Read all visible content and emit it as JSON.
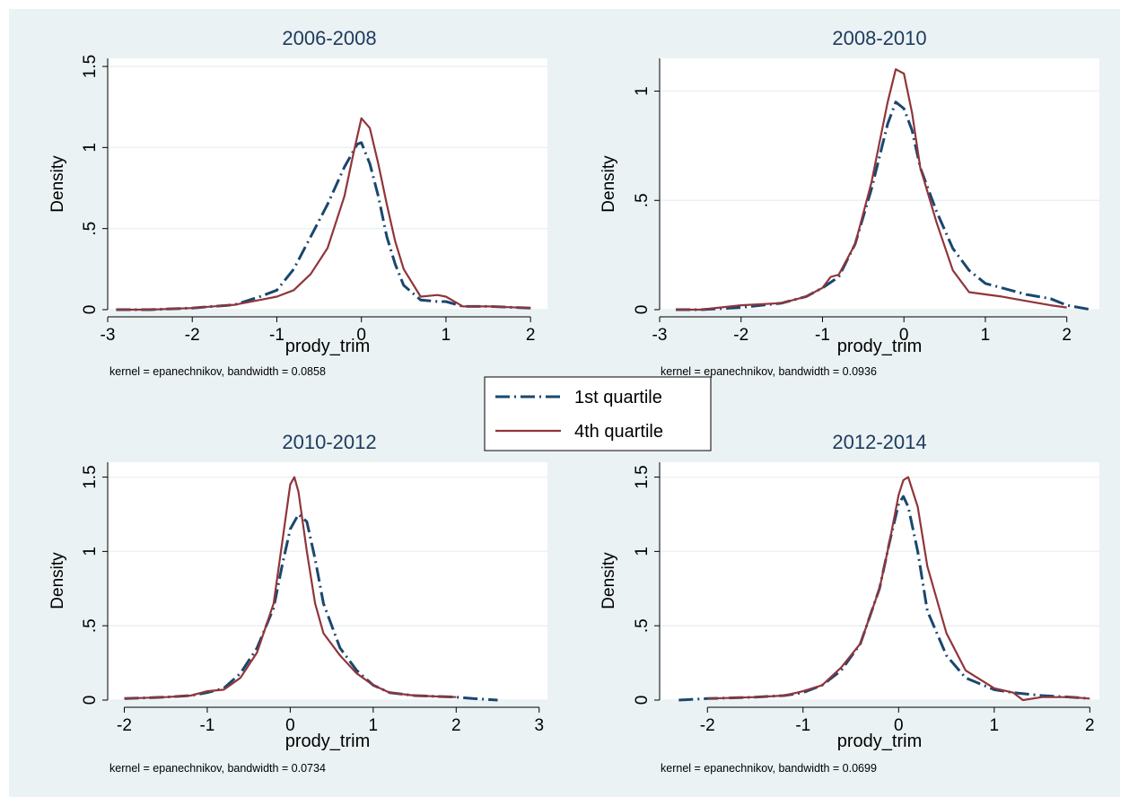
{
  "colors": {
    "background": "#eaf2f3",
    "plot_background": "#ffffff",
    "gridline": "#eaf2f3",
    "text": "#000000",
    "title_text": "#1e3a5f",
    "first_quartile": "#1a476f",
    "fourth_quartile": "#90353b"
  },
  "legend": {
    "placement": "center",
    "items": [
      {
        "label": "1st quartile",
        "style": "dash-dot",
        "color": "#1a476f"
      },
      {
        "label": "4th quartile",
        "style": "solid",
        "color": "#90353b"
      }
    ]
  },
  "chart_data": [
    {
      "type": "line",
      "title": "2006-2008",
      "xlabel": "prody_trim",
      "ylabel": "Density",
      "note": "kernel = epanechnikov, bandwidth = 0.0858",
      "xlim": [
        -3,
        2.2
      ],
      "ylim": [
        0,
        1.55
      ],
      "xticks": [
        -3,
        -2,
        -1,
        0,
        1,
        2
      ],
      "xtick_labels": [
        "-3",
        "-2",
        "-1",
        "0",
        "1",
        "2"
      ],
      "yticks": [
        0,
        0.5,
        1,
        1.5
      ],
      "ytick_labels": [
        "0",
        ".5",
        "1",
        "1.5"
      ],
      "grid": true,
      "series": [
        {
          "name": "1st quartile",
          "x": [
            -2.9,
            -2.5,
            -2.0,
            -1.5,
            -1.2,
            -1.0,
            -0.8,
            -0.6,
            -0.4,
            -0.2,
            -0.05,
            0.0,
            0.1,
            0.2,
            0.3,
            0.4,
            0.5,
            0.7,
            0.9,
            1.0,
            1.2,
            1.5,
            2.0
          ],
          "y": [
            0.0,
            0.0,
            0.01,
            0.03,
            0.08,
            0.12,
            0.25,
            0.45,
            0.65,
            0.88,
            1.02,
            1.03,
            0.9,
            0.7,
            0.45,
            0.28,
            0.15,
            0.06,
            0.05,
            0.05,
            0.02,
            0.02,
            0.01
          ]
        },
        {
          "name": "4th quartile",
          "x": [
            -2.9,
            -2.5,
            -2.0,
            -1.5,
            -1.2,
            -1.0,
            -0.8,
            -0.6,
            -0.4,
            -0.2,
            -0.1,
            0.0,
            0.1,
            0.2,
            0.3,
            0.4,
            0.5,
            0.7,
            0.9,
            1.0,
            1.2,
            1.5,
            2.0
          ],
          "y": [
            0.0,
            0.0,
            0.01,
            0.03,
            0.06,
            0.08,
            0.12,
            0.22,
            0.38,
            0.7,
            0.95,
            1.18,
            1.12,
            0.9,
            0.65,
            0.42,
            0.25,
            0.08,
            0.09,
            0.08,
            0.02,
            0.02,
            0.01
          ]
        }
      ]
    },
    {
      "type": "line",
      "title": "2008-2010",
      "xlabel": "prody_trim",
      "ylabel": "Density",
      "note": "kernel = epanechnikov, bandwidth = 0.0936",
      "xlim": [
        -3,
        2.4
      ],
      "ylim": [
        0,
        1.15
      ],
      "xticks": [
        -3,
        -2,
        -1,
        0,
        1,
        2
      ],
      "xtick_labels": [
        "-3",
        "-2",
        "-1",
        "0",
        "1",
        "2"
      ],
      "yticks": [
        0,
        0.5,
        1
      ],
      "ytick_labels": [
        "0",
        ".5",
        "1"
      ],
      "grid": true,
      "series": [
        {
          "name": "1st quartile",
          "x": [
            -2.8,
            -2.5,
            -2.0,
            -1.5,
            -1.2,
            -1.0,
            -0.8,
            -0.6,
            -0.4,
            -0.2,
            -0.1,
            0.0,
            0.1,
            0.2,
            0.4,
            0.6,
            0.8,
            1.0,
            1.2,
            1.5,
            1.8,
            2.0,
            2.3
          ],
          "y": [
            0.0,
            0.0,
            0.01,
            0.03,
            0.06,
            0.1,
            0.15,
            0.3,
            0.55,
            0.85,
            0.95,
            0.92,
            0.82,
            0.65,
            0.45,
            0.28,
            0.18,
            0.12,
            0.1,
            0.07,
            0.05,
            0.02,
            0.0
          ]
        },
        {
          "name": "4th quartile",
          "x": [
            -2.8,
            -2.5,
            -2.0,
            -1.5,
            -1.2,
            -1.0,
            -0.9,
            -0.8,
            -0.6,
            -0.4,
            -0.2,
            -0.1,
            0.0,
            0.1,
            0.2,
            0.4,
            0.6,
            0.8,
            1.0,
            1.2,
            1.5,
            1.8,
            2.0
          ],
          "y": [
            0.0,
            0.0,
            0.02,
            0.03,
            0.06,
            0.1,
            0.15,
            0.16,
            0.3,
            0.58,
            0.95,
            1.1,
            1.08,
            0.9,
            0.65,
            0.4,
            0.18,
            0.08,
            0.07,
            0.06,
            0.04,
            0.02,
            0.01
          ]
        }
      ]
    },
    {
      "type": "line",
      "title": "2010-2012",
      "xlabel": "prody_trim",
      "ylabel": "Density",
      "note": "kernel = epanechnikov, bandwidth = 0.0734",
      "xlim": [
        -2.2,
        3.1
      ],
      "ylim": [
        0,
        1.6
      ],
      "xticks": [
        -2,
        -1,
        0,
        1,
        2,
        3
      ],
      "xtick_labels": [
        "-2",
        "-1",
        "0",
        "1",
        "2",
        "3"
      ],
      "yticks": [
        0,
        0.5,
        1,
        1.5
      ],
      "ytick_labels": [
        "0",
        ".5",
        "1",
        "1.5"
      ],
      "grid": true,
      "series": [
        {
          "name": "1st quartile",
          "x": [
            -2.0,
            -1.5,
            -1.2,
            -1.0,
            -0.8,
            -0.6,
            -0.4,
            -0.2,
            -0.1,
            0.0,
            0.1,
            0.2,
            0.3,
            0.4,
            0.6,
            0.8,
            1.0,
            1.2,
            1.5,
            2.0,
            2.2,
            2.5
          ],
          "y": [
            0.01,
            0.02,
            0.03,
            0.05,
            0.08,
            0.18,
            0.35,
            0.62,
            0.9,
            1.15,
            1.25,
            1.2,
            0.95,
            0.65,
            0.35,
            0.2,
            0.1,
            0.05,
            0.03,
            0.02,
            0.01,
            0.0
          ]
        },
        {
          "name": "4th quartile",
          "x": [
            -2.0,
            -1.5,
            -1.2,
            -1.0,
            -0.8,
            -0.6,
            -0.4,
            -0.2,
            -0.1,
            0.0,
            0.05,
            0.1,
            0.2,
            0.3,
            0.4,
            0.6,
            0.8,
            1.0,
            1.2,
            1.5,
            2.0
          ],
          "y": [
            0.01,
            0.02,
            0.03,
            0.06,
            0.07,
            0.15,
            0.32,
            0.65,
            1.05,
            1.45,
            1.5,
            1.4,
            1.0,
            0.65,
            0.45,
            0.3,
            0.18,
            0.1,
            0.05,
            0.03,
            0.02
          ]
        }
      ]
    },
    {
      "type": "line",
      "title": "2012-2014",
      "xlabel": "prody_trim",
      "ylabel": "Density",
      "note": "kernel = epanechnikov, bandwidth = 0.0699",
      "xlim": [
        -2.5,
        2.1
      ],
      "ylim": [
        0,
        1.6
      ],
      "xticks": [
        -2,
        -1,
        0,
        1,
        2
      ],
      "xtick_labels": [
        "-2",
        "-1",
        "0",
        "1",
        "2"
      ],
      "yticks": [
        0,
        0.5,
        1,
        1.5
      ],
      "ytick_labels": [
        "0",
        ".5",
        "1",
        "1.5"
      ],
      "grid": true,
      "series": [
        {
          "name": "1st quartile",
          "x": [
            -2.3,
            -2.0,
            -1.5,
            -1.2,
            -1.0,
            -0.8,
            -0.6,
            -0.4,
            -0.2,
            -0.1,
            0.0,
            0.05,
            0.1,
            0.2,
            0.3,
            0.5,
            0.7,
            1.0,
            1.2,
            1.5,
            1.8,
            2.0
          ],
          "y": [
            0.0,
            0.01,
            0.02,
            0.03,
            0.05,
            0.1,
            0.2,
            0.38,
            0.75,
            1.05,
            1.32,
            1.37,
            1.3,
            1.0,
            0.6,
            0.3,
            0.15,
            0.07,
            0.05,
            0.03,
            0.02,
            0.01
          ]
        },
        {
          "name": "4th quartile",
          "x": [
            -2.0,
            -1.5,
            -1.2,
            -1.0,
            -0.8,
            -0.6,
            -0.4,
            -0.2,
            -0.1,
            0.0,
            0.05,
            0.1,
            0.2,
            0.3,
            0.5,
            0.7,
            1.0,
            1.2,
            1.3,
            1.5,
            1.8,
            2.0
          ],
          "y": [
            0.01,
            0.02,
            0.03,
            0.06,
            0.1,
            0.22,
            0.38,
            0.75,
            1.05,
            1.38,
            1.48,
            1.5,
            1.3,
            0.9,
            0.45,
            0.2,
            0.08,
            0.05,
            0.0,
            0.02,
            0.02,
            0.01
          ]
        }
      ]
    }
  ]
}
